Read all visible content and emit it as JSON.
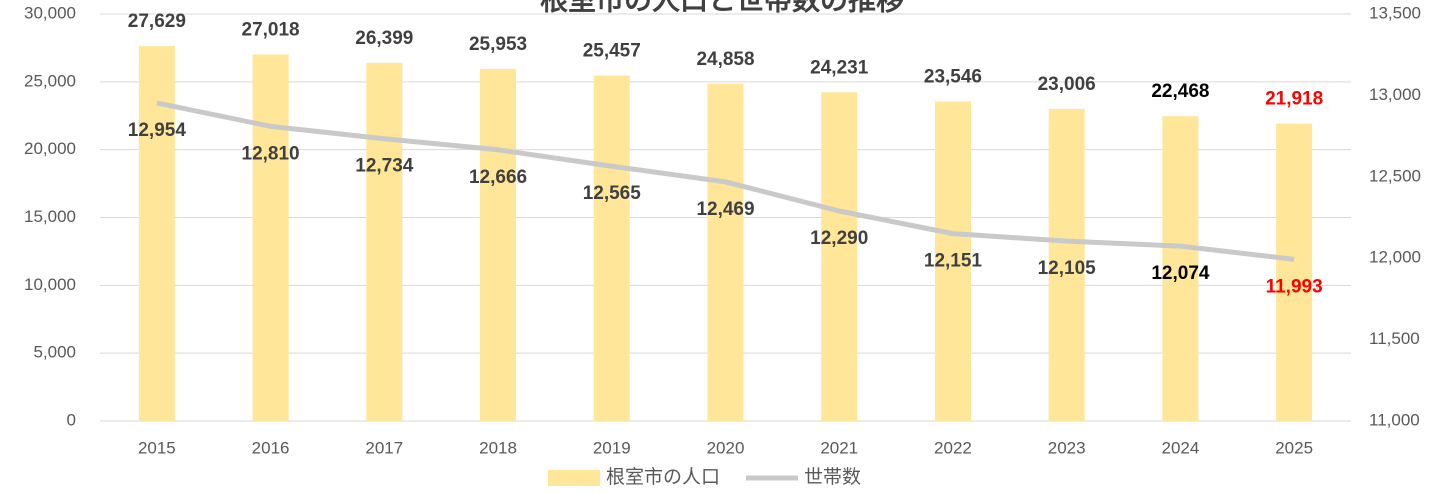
{
  "chart_data": {
    "type": "bar-line",
    "title": "根室市の人口と世帯数の推移",
    "categories": [
      "2015",
      "2016",
      "2017",
      "2018",
      "2019",
      "2020",
      "2021",
      "2022",
      "2023",
      "2024",
      "2025"
    ],
    "series": [
      {
        "name": "根室市の人口",
        "type": "bar",
        "color": "#ffe699",
        "values": [
          27629,
          27018,
          26399,
          25953,
          25457,
          24858,
          24231,
          23546,
          23006,
          22468,
          21918
        ],
        "value_labels": [
          "27,629",
          "27,018",
          "26,399",
          "25,953",
          "25,457",
          "24,858",
          "24,231",
          "23,546",
          "23,006",
          "22,468",
          "21,918"
        ],
        "label_colors": [
          "#404040",
          "#404040",
          "#404040",
          "#404040",
          "#404040",
          "#404040",
          "#404040",
          "#404040",
          "#404040",
          "#000000",
          "#ff0000"
        ]
      },
      {
        "name": "世帯数",
        "type": "line",
        "axis": "y2",
        "color": "#c9c9c9",
        "values": [
          12954,
          12810,
          12734,
          12666,
          12565,
          12469,
          12290,
          12151,
          12105,
          12074,
          11993
        ],
        "value_labels": [
          "12,954",
          "12,810",
          "12,734",
          "12,666",
          "12,565",
          "12,469",
          "12,290",
          "12,151",
          "12,105",
          "12,074",
          "11,993"
        ],
        "label_colors": [
          "#404040",
          "#404040",
          "#404040",
          "#404040",
          "#404040",
          "#404040",
          "#404040",
          "#404040",
          "#404040",
          "#000000",
          "#ff0000"
        ]
      }
    ],
    "ylim": [
      0,
      30000
    ],
    "yticks": [
      0,
      {
        "value": 5000,
        "label": "5,000"
      },
      {
        "value": 10000,
        "label": "10,000"
      },
      {
        "value": 15000,
        "label": "15,000"
      },
      {
        "value": 20000,
        "label": "20,000"
      },
      {
        "value": 25000,
        "label": "25,000"
      },
      {
        "value": 30000,
        "label": "30,000"
      }
    ],
    "y2lim": [
      11000,
      13500
    ],
    "y2ticks": [
      {
        "value": 11000,
        "label": "11,000"
      },
      {
        "value": 11500,
        "label": "11,500"
      },
      {
        "value": 12000,
        "label": "12,000"
      },
      {
        "value": 12500,
        "label": "12,500"
      },
      {
        "value": 13000,
        "label": "13,000"
      },
      {
        "value": 13500,
        "label": "13,500"
      }
    ],
    "grid": true,
    "legend": "bottom"
  }
}
